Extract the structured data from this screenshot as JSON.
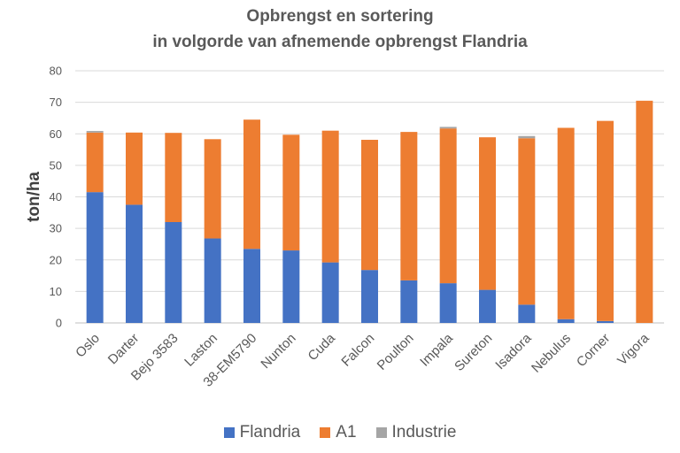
{
  "chart_data": {
    "type": "bar",
    "stacked": true,
    "title_line1": "Opbrengst en sortering",
    "title_line2": "in volgorde van afnemende opbrengst Flandria",
    "ylabel": "ton/ha",
    "xlabel": "",
    "ylim": [
      0,
      80
    ],
    "yticks": [
      0,
      10,
      20,
      30,
      40,
      50,
      60,
      70,
      80
    ],
    "grid": true,
    "legend_position": "bottom",
    "categories": [
      "Oslo",
      "Darter",
      "Bejo 3583",
      "Laston",
      "38-EM5790",
      "Nunton",
      "Cuda",
      "Falcon",
      "Poulton",
      "Impala",
      "Sureton",
      "Isadora",
      "Nebulus",
      "Corner",
      "Vigora"
    ],
    "series": [
      {
        "name": "Flandria",
        "color": "#4472C4",
        "values": [
          41.5,
          37.5,
          32.0,
          26.8,
          23.5,
          23.0,
          19.2,
          16.8,
          13.5,
          12.6,
          10.5,
          5.8,
          1.2,
          0.6,
          0.0
        ]
      },
      {
        "name": "A1",
        "color": "#ED7D31",
        "values": [
          18.9,
          22.9,
          28.3,
          31.5,
          41.0,
          36.7,
          41.8,
          41.3,
          47.1,
          49.1,
          48.4,
          52.8,
          60.7,
          63.5,
          70.5
        ]
      },
      {
        "name": "Industrie",
        "color": "#A5A5A5",
        "values": [
          0.5,
          0.0,
          0.0,
          0.0,
          0.0,
          0.0,
          0.0,
          0.0,
          0.0,
          0.5,
          0.0,
          0.7,
          0.0,
          0.0,
          0.0
        ]
      }
    ]
  }
}
